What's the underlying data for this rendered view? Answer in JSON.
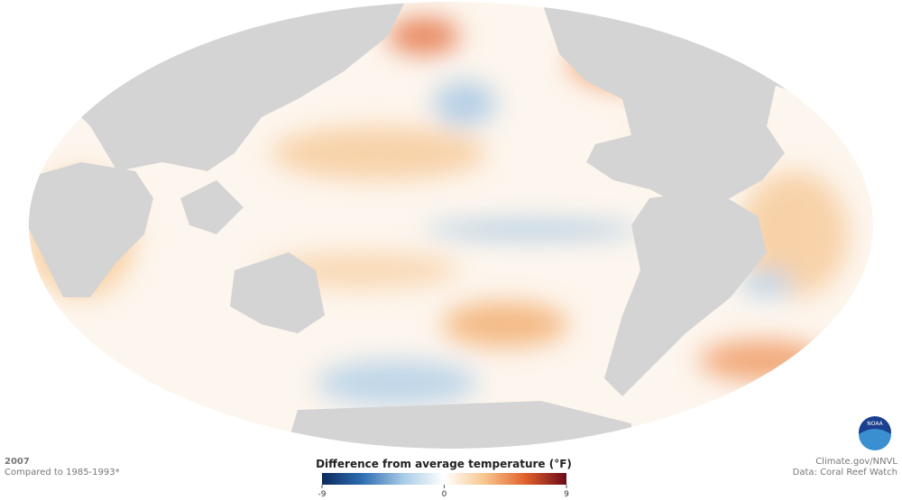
{
  "header": {
    "year": "2007",
    "baseline": "Compared to 1985-1993*"
  },
  "legend": {
    "title": "Difference from average temperature (°F)",
    "ticks": [
      -9,
      0,
      9
    ],
    "colors": [
      "#0b2a5c",
      "#2f6fb3",
      "#a9cbe6",
      "#ffffff",
      "#f7c58c",
      "#e0602c",
      "#6b0a1a"
    ]
  },
  "credits": {
    "source": "Climate.gov/NNVL",
    "data": "Data: Coral Reef Watch"
  },
  "logo": "NOAA"
}
